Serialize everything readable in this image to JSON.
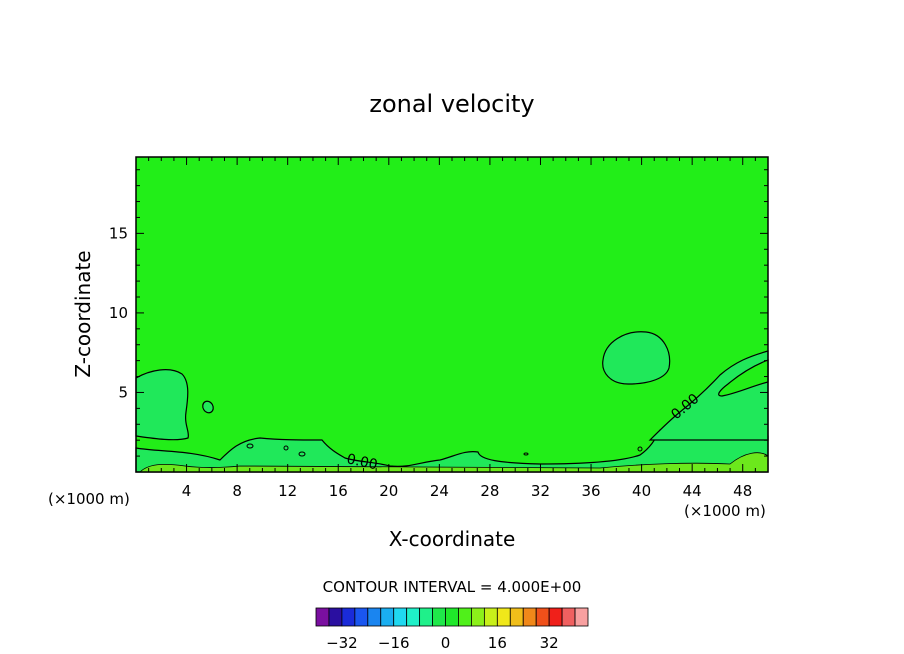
{
  "chart_data": {
    "type": "contour",
    "title": "zonal velocity",
    "xlabel": "X-coordinate",
    "ylabel": "Z-coordinate",
    "x_unit": "(×1000 m)",
    "x_ticks": [
      4,
      8,
      12,
      16,
      20,
      24,
      28,
      32,
      36,
      40,
      44,
      48
    ],
    "y_ticks": [
      5,
      10,
      15
    ],
    "xlim": [
      0,
      50
    ],
    "ylim": [
      0,
      19.8
    ],
    "contour_interval_text": "CONTOUR INTERVAL = 4.000E+00",
    "contour_labels": [
      "0.00",
      "0.00"
    ],
    "colorbar": {
      "tick_labels": [
        "-32",
        "-16",
        "0",
        "16",
        "32"
      ],
      "colors": [
        "#7a0fa0",
        "#2a0fa0",
        "#1a2bd9",
        "#1a56f0",
        "#1a85f0",
        "#1aaef0",
        "#20d8f0",
        "#1ff0c8",
        "#1ff08a",
        "#1fe84a",
        "#1fe82a",
        "#50f01a",
        "#8cf01a",
        "#c8f01a",
        "#f0e81a",
        "#f0be1a",
        "#f0881a",
        "#f0501a",
        "#f0201a",
        "#f06060",
        "#f8a0a0"
      ]
    },
    "regions": [
      {
        "level": "0 to 4",
        "color": "#22ee18",
        "area": "background"
      },
      {
        "level": "4 to 8",
        "color": "#20e85a",
        "area": "left-low, near-surface band, right-middle"
      },
      {
        "level": "8+",
        "color": "#6ce81c",
        "area": "surface strip"
      }
    ]
  }
}
